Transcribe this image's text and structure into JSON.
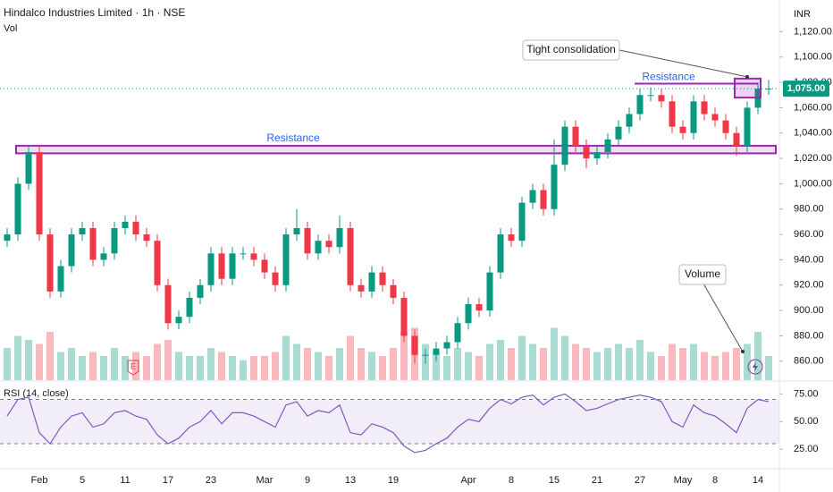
{
  "header": {
    "title": "Hindalco Industries Limited · 1h · NSE",
    "volume_label": "Vol",
    "currency": "INR"
  },
  "chart_data": {
    "type": "candlestick",
    "categories": [
      null,
      null,
      null,
      "Feb",
      null,
      null,
      null,
      "5",
      null,
      null,
      null,
      "11",
      null,
      null,
      null,
      "17",
      null,
      null,
      null,
      "23",
      null,
      null,
      null,
      null,
      "Mar",
      null,
      null,
      null,
      "9",
      null,
      null,
      null,
      "13",
      null,
      null,
      null,
      "19",
      null,
      null,
      null,
      null,
      null,
      null,
      "Apr",
      null,
      null,
      null,
      "8",
      null,
      null,
      null,
      "15",
      null,
      null,
      null,
      "21",
      null,
      null,
      null,
      "27",
      null,
      null,
      null,
      "May",
      null,
      null,
      "8",
      null,
      null,
      null,
      "14",
      null
    ],
    "open": [
      955,
      960,
      1000,
      1025,
      960,
      915,
      935,
      960,
      965,
      940,
      945,
      965,
      970,
      960,
      955,
      920,
      890,
      895,
      910,
      920,
      945,
      925,
      945,
      945,
      940,
      930,
      920,
      960,
      965,
      945,
      955,
      950,
      965,
      920,
      915,
      930,
      920,
      910,
      880,
      865,
      865,
      870,
      875,
      890,
      905,
      900,
      930,
      960,
      955,
      985,
      995,
      980,
      1015,
      1045,
      1030,
      1020,
      1025,
      1035,
      1045,
      1055,
      1070,
      1070,
      1065,
      1045,
      1040,
      1065,
      1055,
      1050,
      1040,
      1030,
      1060,
      1075
    ],
    "high": [
      965,
      1005,
      1030,
      1030,
      965,
      940,
      965,
      970,
      970,
      950,
      970,
      975,
      975,
      965,
      960,
      925,
      900,
      915,
      925,
      950,
      950,
      950,
      950,
      950,
      945,
      935,
      965,
      980,
      970,
      960,
      960,
      975,
      970,
      925,
      935,
      935,
      925,
      915,
      885,
      870,
      875,
      880,
      895,
      910,
      910,
      935,
      965,
      965,
      990,
      1000,
      1000,
      1035,
      1050,
      1050,
      1035,
      1030,
      1040,
      1050,
      1060,
      1075,
      1076,
      1075,
      1070,
      1050,
      1070,
      1070,
      1060,
      1055,
      1045,
      1065,
      1080,
      1082
    ],
    "low": [
      950,
      955,
      995,
      955,
      910,
      910,
      930,
      955,
      935,
      935,
      940,
      960,
      955,
      950,
      915,
      885,
      885,
      890,
      905,
      915,
      920,
      920,
      940,
      935,
      925,
      915,
      915,
      955,
      940,
      940,
      945,
      945,
      915,
      910,
      910,
      915,
      905,
      875,
      858,
      858,
      860,
      865,
      870,
      885,
      895,
      895,
      925,
      950,
      950,
      980,
      975,
      975,
      1010,
      1025,
      1012,
      1015,
      1020,
      1030,
      1040,
      1050,
      1065,
      1060,
      1040,
      1035,
      1035,
      1050,
      1045,
      1035,
      1022,
      1025,
      1055,
      1070
    ],
    "close": [
      960,
      1000,
      1025,
      960,
      915,
      935,
      960,
      965,
      940,
      945,
      965,
      970,
      960,
      955,
      920,
      890,
      895,
      910,
      920,
      945,
      925,
      945,
      945,
      940,
      930,
      920,
      960,
      965,
      945,
      955,
      950,
      965,
      920,
      915,
      930,
      920,
      910,
      880,
      865,
      865,
      870,
      875,
      890,
      905,
      900,
      930,
      960,
      955,
      985,
      995,
      980,
      1015,
      1045,
      1030,
      1020,
      1025,
      1035,
      1045,
      1055,
      1070,
      1070,
      1065,
      1045,
      1040,
      1065,
      1055,
      1050,
      1040,
      1030,
      1060,
      1075,
      1075
    ],
    "volume": [
      40,
      55,
      50,
      45,
      60,
      35,
      40,
      30,
      35,
      30,
      40,
      30,
      35,
      30,
      45,
      50,
      35,
      30,
      30,
      40,
      35,
      30,
      25,
      30,
      30,
      35,
      55,
      45,
      40,
      35,
      30,
      40,
      55,
      40,
      35,
      30,
      40,
      60,
      65,
      45,
      35,
      30,
      40,
      35,
      30,
      45,
      50,
      40,
      55,
      45,
      40,
      65,
      55,
      45,
      40,
      35,
      40,
      45,
      40,
      50,
      35,
      30,
      45,
      40,
      45,
      35,
      30,
      35,
      40,
      45,
      60,
      30
    ],
    "up_color": "#089981",
    "down_color": "#f23645",
    "ylim": [
      845,
      1145
    ],
    "yticks": [
      {
        "value": 860,
        "label": "860.00"
      },
      {
        "value": 880,
        "label": "880.00"
      },
      {
        "value": 900,
        "label": "900.00"
      },
      {
        "value": 920,
        "label": "920.00"
      },
      {
        "value": 940,
        "label": "940.00"
      },
      {
        "value": 960,
        "label": "960.00"
      },
      {
        "value": 980,
        "label": "980.00"
      },
      {
        "value": 1000,
        "label": "1,000.00"
      },
      {
        "value": 1020,
        "label": "1,020.00"
      },
      {
        "value": 1040,
        "label": "1,040.00"
      },
      {
        "value": 1060,
        "label": "1,060.00"
      },
      {
        "value": 1080,
        "label": "1,080.00"
      },
      {
        "value": 1100,
        "label": "1,100.00"
      },
      {
        "value": 1120,
        "label": "1,120.00"
      }
    ],
    "last_price": {
      "value": 1075,
      "label": "1,075.00",
      "color": "#089981"
    },
    "annotations": [
      {
        "text": "Resistance",
        "low": 1024,
        "high": 1030,
        "color": "#9c27b0"
      },
      {
        "text": "Resistance",
        "level": 1079,
        "color": "#9c27b0"
      },
      {
        "text": "Tight consolidation",
        "low": 1068,
        "high": 1083
      },
      {
        "text": "Volume"
      }
    ],
    "rsi": {
      "title": "RSI (14, close)",
      "color": "#7e57c2",
      "values": [
        55,
        70,
        72,
        40,
        30,
        45,
        55,
        58,
        45,
        48,
        58,
        60,
        55,
        52,
        38,
        30,
        35,
        45,
        50,
        60,
        48,
        58,
        58,
        55,
        50,
        45,
        65,
        68,
        55,
        60,
        58,
        65,
        40,
        38,
        48,
        45,
        40,
        28,
        22,
        24,
        30,
        35,
        45,
        52,
        50,
        62,
        70,
        66,
        72,
        74,
        65,
        72,
        75,
        68,
        60,
        62,
        66,
        70,
        72,
        74,
        72,
        68,
        50,
        45,
        65,
        58,
        55,
        48,
        40,
        62,
        70,
        68
      ],
      "ylim": [
        9,
        85
      ],
      "yticks": [
        {
          "value": 25,
          "label": "25.00"
        },
        {
          "value": 50,
          "label": "50.00"
        },
        {
          "value": 75,
          "label": "75.00"
        }
      ],
      "band": [
        30,
        70
      ]
    }
  }
}
